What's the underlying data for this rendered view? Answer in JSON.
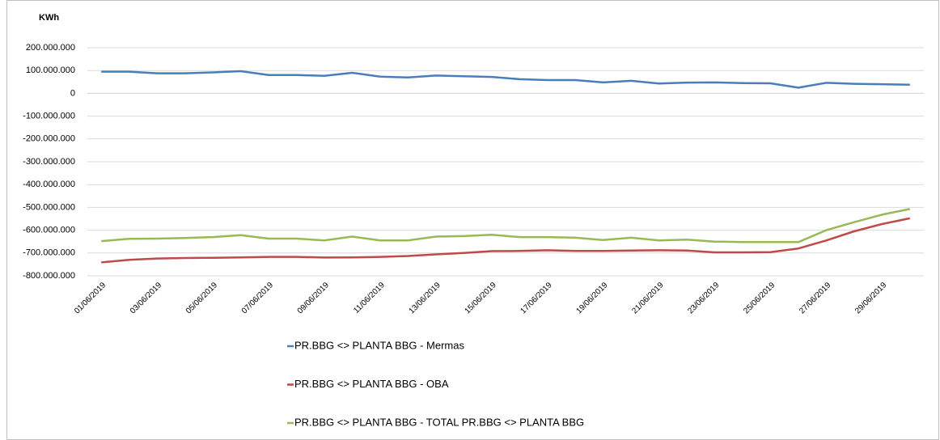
{
  "chart_data": {
    "type": "line",
    "title": "KWh",
    "categories": [
      "01/06/2019",
      null,
      "03/06/2019",
      null,
      "05/06/2019",
      null,
      "07/06/2019",
      null,
      "09/06/2019",
      null,
      "11/06/2019",
      null,
      "13/06/2019",
      null,
      "15/06/2019",
      null,
      "17/06/2019",
      null,
      "19/06/2019",
      null,
      "21/06/2019",
      null,
      "23/06/2019",
      null,
      "25/06/2019",
      null,
      "27/06/2019",
      null,
      "29/06/2019",
      null
    ],
    "series": [
      {
        "name": "PR.BBG <> PLANTA BBG - Mermas",
        "color": "#4a7ebb",
        "values": [
          95000000,
          95000000,
          88000000,
          88000000,
          92000000,
          97000000,
          80000000,
          80000000,
          77000000,
          90000000,
          73000000,
          70000000,
          78000000,
          75000000,
          72000000,
          62000000,
          58000000,
          58000000,
          48000000,
          55000000,
          43000000,
          47000000,
          48000000,
          45000000,
          44000000,
          25000000,
          46000000,
          42000000,
          40000000,
          38000000
        ]
      },
      {
        "name": "PR.BBG <> PLANTA BBG - OBA",
        "color": "#be4b48",
        "values": [
          -741000000,
          -730000000,
          -724000000,
          -722000000,
          -721000000,
          -719000000,
          -717000000,
          -717000000,
          -720000000,
          -719000000,
          -717000000,
          -713000000,
          -706000000,
          -700000000,
          -692000000,
          -691000000,
          -688000000,
          -691000000,
          -691000000,
          -689000000,
          -688000000,
          -689000000,
          -697000000,
          -697000000,
          -696000000,
          -680000000,
          -645000000,
          -605000000,
          -573000000,
          -548000000
        ]
      },
      {
        "name": "PR.BBG <> PLANTA BBG - TOTAL PR.BBG <> PLANTA BBG",
        "color": "#98b954",
        "values": [
          -648000000,
          -638000000,
          -637000000,
          -634000000,
          -630000000,
          -622000000,
          -637000000,
          -637000000,
          -645000000,
          -628000000,
          -645000000,
          -645000000,
          -628000000,
          -626000000,
          -620000000,
          -630000000,
          -630000000,
          -633000000,
          -643000000,
          -633000000,
          -645000000,
          -641000000,
          -650000000,
          -652000000,
          -652000000,
          -652000000,
          -600000000,
          -565000000,
          -532000000,
          -507000000
        ]
      }
    ],
    "ylim": [
      -800000000,
      200000000
    ],
    "yticks": [
      {
        "value": -800000000,
        "label": "-800.000.000"
      },
      {
        "value": -700000000,
        "label": "-700.000.000"
      },
      {
        "value": -600000000,
        "label": "-600.000.000"
      },
      {
        "value": -500000000,
        "label": "-500.000.000"
      },
      {
        "value": -400000000,
        "label": "-400.000.000"
      },
      {
        "value": -300000000,
        "label": "-300.000.000"
      },
      {
        "value": -200000000,
        "label": "-200.000.000"
      },
      {
        "value": -100000000,
        "label": "-100.000.000"
      },
      0,
      {
        "value": 100000000,
        "label": "100.000.000"
      },
      {
        "value": 200000000,
        "label": "200.000.000"
      }
    ],
    "grid": true
  }
}
